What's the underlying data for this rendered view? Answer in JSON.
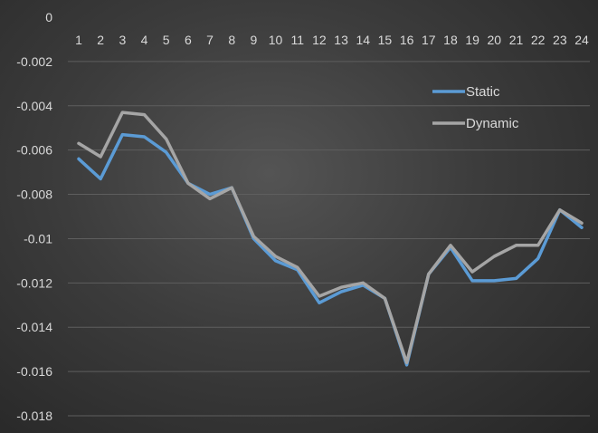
{
  "chart_data": {
    "type": "line",
    "x": [
      "1",
      "2",
      "3",
      "4",
      "5",
      "6",
      "7",
      "8",
      "9",
      "10",
      "11",
      "12",
      "13",
      "14",
      "15",
      "16",
      "17",
      "18",
      "19",
      "20",
      "21",
      "22",
      "23",
      "24"
    ],
    "ylim": [
      -0.018,
      0
    ],
    "y_ticks": [
      "0",
      "-0.002",
      "-0.004",
      "-0.006",
      "-0.008",
      "-0.01",
      "-0.012",
      "-0.014",
      "-0.016",
      "-0.018"
    ],
    "y_tick_values": [
      0,
      -0.002,
      -0.004,
      -0.006,
      -0.008,
      -0.01,
      -0.012,
      -0.014,
      -0.016,
      -0.018
    ],
    "grid": true,
    "legend_position": "top-right",
    "series": [
      {
        "name": "Static",
        "color": "#5b9bd5",
        "values": [
          -0.0064,
          -0.0073,
          -0.0053,
          -0.0054,
          -0.0061,
          -0.0075,
          -0.008,
          -0.0077,
          -0.01,
          -0.011,
          -0.0114,
          -0.0129,
          -0.0124,
          -0.0121,
          -0.0127,
          -0.0157,
          -0.0116,
          -0.0104,
          -0.0119,
          -0.0119,
          -0.0118,
          -0.0109,
          -0.0087,
          -0.0095
        ]
      },
      {
        "name": "Dynamic",
        "color": "#a5a5a5",
        "values": [
          -0.0057,
          -0.0063,
          -0.0043,
          -0.0044,
          -0.0055,
          -0.0075,
          -0.0082,
          -0.0077,
          -0.0099,
          -0.0108,
          -0.0113,
          -0.0126,
          -0.0122,
          -0.012,
          -0.0127,
          -0.0156,
          -0.0116,
          -0.0103,
          -0.0115,
          -0.0108,
          -0.0103,
          -0.0103,
          -0.0087,
          -0.0093
        ]
      }
    ]
  }
}
